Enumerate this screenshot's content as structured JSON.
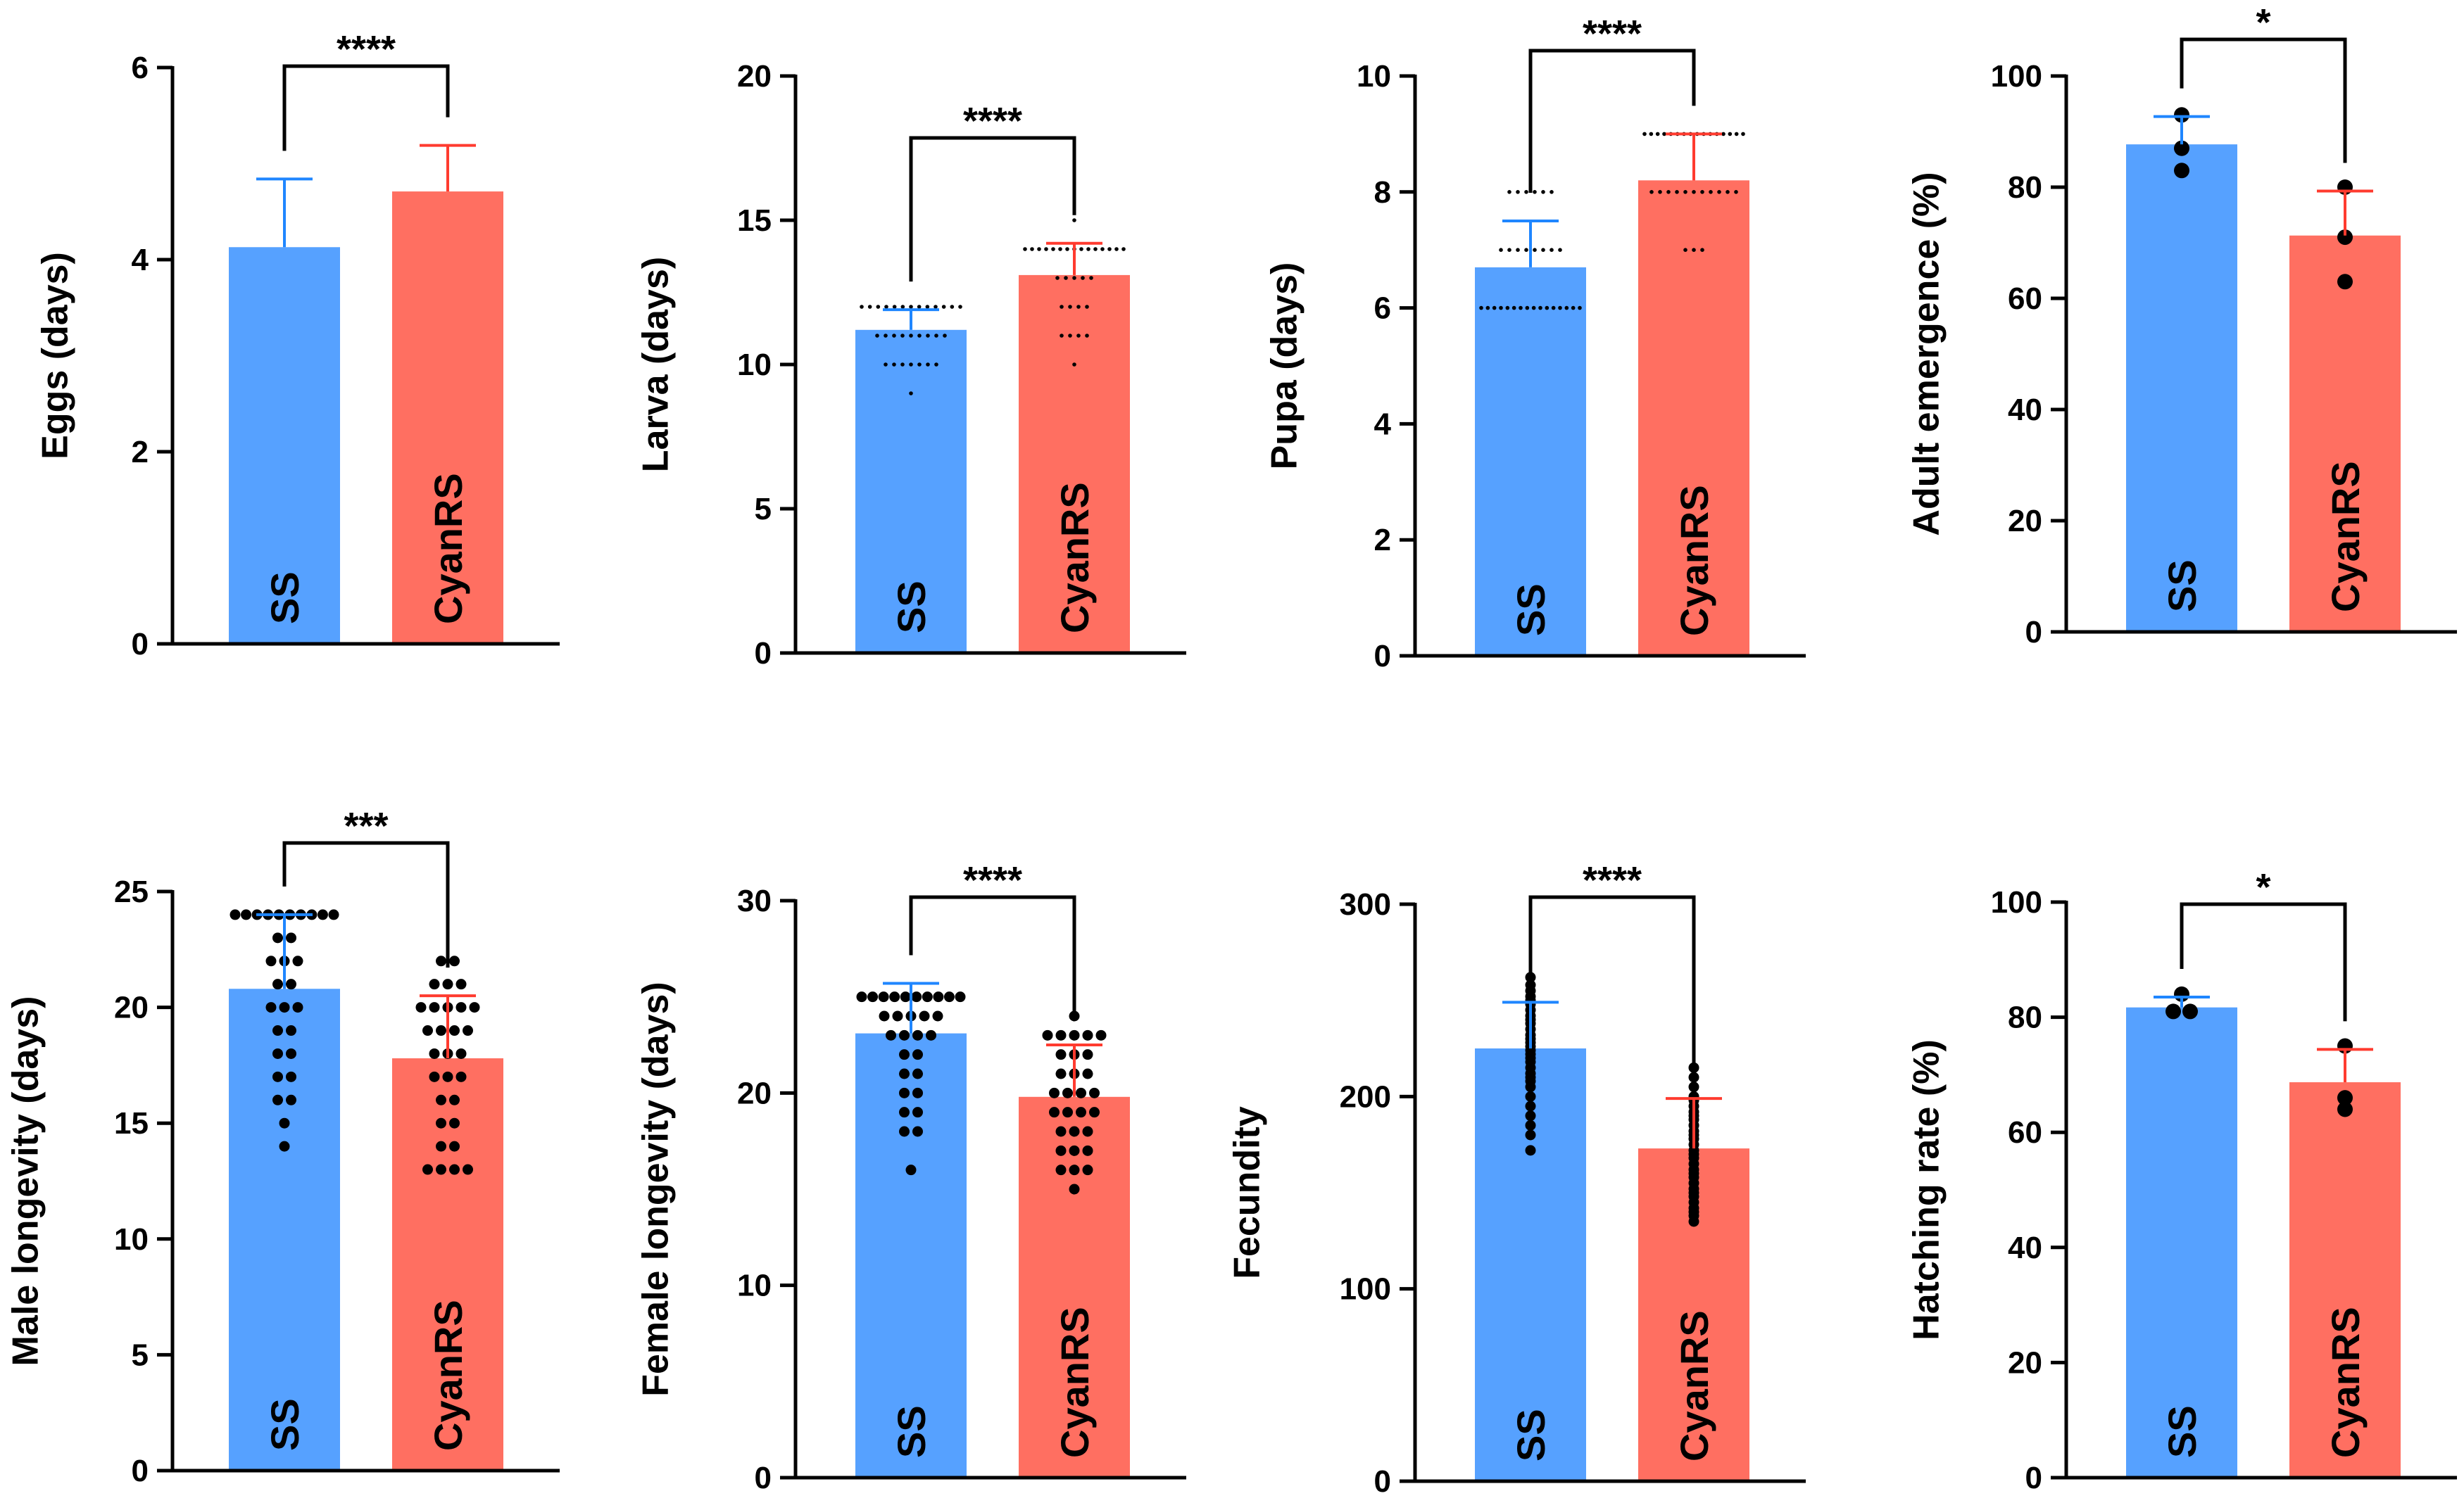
{
  "colors": {
    "SS": "#56A1FF",
    "CyanRS": "#FF6F61",
    "SS_error": "#1F86FF",
    "CyanRS_error": "#FF3B2F",
    "axis": "#000000"
  },
  "chart_data": [
    {
      "type": "bar",
      "panel": "top-left",
      "ylabel": "Eggs (days)",
      "ylim": [
        0,
        6
      ],
      "yticks": [
        0,
        2,
        4,
        6
      ],
      "categories": [
        "SS",
        "CyanRS"
      ],
      "values": [
        4.13,
        4.71
      ],
      "sd": [
        0.71,
        0.48
      ],
      "points": [
        [],
        []
      ],
      "points_style": "none",
      "significance": "****"
    },
    {
      "type": "bar",
      "panel": "top-2",
      "ylabel": "Larva (days)",
      "ylim": [
        0,
        20
      ],
      "yticks": [
        0,
        5,
        10,
        15,
        20
      ],
      "categories": [
        "SS",
        "CyanRS"
      ],
      "values": [
        11.2,
        13.1
      ],
      "sd": [
        0.7,
        1.1
      ],
      "points": [
        [
          12,
          12,
          12,
          12,
          12,
          12,
          12,
          12,
          12,
          12,
          12,
          12,
          12,
          11,
          11,
          11,
          11,
          11,
          11,
          11,
          11,
          11,
          10,
          10,
          10,
          10,
          10,
          10,
          10,
          9
        ],
        [
          15,
          14,
          14,
          14,
          14,
          14,
          14,
          14,
          14,
          14,
          14,
          14,
          14,
          14,
          14,
          14,
          13,
          13,
          13,
          13,
          13,
          12,
          12,
          12,
          12,
          11,
          11,
          11,
          11,
          10
        ]
      ],
      "points_style": "small",
      "significance": "****"
    },
    {
      "type": "bar",
      "panel": "top-3",
      "ylabel": "Pupa (days)",
      "ylim": [
        0,
        10
      ],
      "yticks": [
        0,
        2,
        4,
        6,
        8,
        10
      ],
      "categories": [
        "SS",
        "CyanRS"
      ],
      "values": [
        6.7,
        8.2
      ],
      "sd": [
        0.8,
        0.8
      ],
      "points": [
        [
          8,
          8,
          8,
          8,
          8,
          8,
          7,
          7,
          7,
          7,
          7,
          7,
          7,
          7,
          6,
          6,
          6,
          6,
          6,
          6,
          6,
          6,
          6,
          6,
          6,
          6,
          6,
          6,
          6,
          6
        ],
        [
          9,
          9,
          9,
          9,
          9,
          9,
          9,
          9,
          9,
          9,
          9,
          9,
          9,
          9,
          9,
          9,
          8,
          8,
          8,
          8,
          8,
          8,
          8,
          8,
          8,
          8,
          8,
          7,
          7,
          7
        ]
      ],
      "points_style": "small",
      "significance": "****"
    },
    {
      "type": "bar",
      "panel": "top-right",
      "ylabel": "Adult emergence (%)",
      "ylim": [
        0,
        100
      ],
      "yticks": [
        0,
        20,
        40,
        60,
        80,
        100
      ],
      "categories": [
        "SS",
        "CyanRS"
      ],
      "values": [
        87.7,
        71.3
      ],
      "sd": [
        5.0,
        8.0
      ],
      "points": [
        [
          93,
          87,
          83
        ],
        [
          80,
          71,
          63
        ]
      ],
      "points_style": "large",
      "significance": "*"
    },
    {
      "type": "bar",
      "panel": "bottom-left",
      "ylabel": "Male longevity (days)",
      "ylim": [
        0,
        25
      ],
      "yticks": [
        0,
        5,
        10,
        15,
        20,
        25
      ],
      "categories": [
        "SS",
        "CyanRS"
      ],
      "values": [
        20.8,
        17.8
      ],
      "sd": [
        3.2,
        2.7
      ],
      "points": [
        [
          24,
          24,
          24,
          24,
          24,
          24,
          24,
          24,
          24,
          24,
          23,
          23,
          22,
          22,
          22,
          21,
          21,
          20,
          20,
          20,
          19,
          19,
          18,
          18,
          17,
          17,
          16,
          16,
          15,
          14
        ],
        [
          22,
          22,
          21,
          21,
          21,
          20,
          20,
          20,
          20,
          20,
          19,
          19,
          19,
          19,
          18,
          18,
          18,
          17,
          17,
          17,
          16,
          16,
          15,
          15,
          14,
          14,
          13,
          13,
          13,
          13
        ]
      ],
      "points_style": "medium",
      "significance": "***"
    },
    {
      "type": "bar",
      "panel": "bottom-2",
      "ylabel": "Female longevity (days)",
      "ylim": [
        0,
        30
      ],
      "yticks": [
        0,
        10,
        20,
        30
      ],
      "categories": [
        "SS",
        "CyanRS"
      ],
      "values": [
        23.1,
        19.8
      ],
      "sd": [
        2.6,
        2.7
      ],
      "points": [
        [
          25,
          25,
          25,
          25,
          25,
          25,
          25,
          25,
          25,
          25,
          24,
          24,
          24,
          24,
          24,
          23,
          23,
          23,
          23,
          22,
          22,
          21,
          21,
          20,
          20,
          19,
          19,
          18,
          18,
          16
        ],
        [
          24,
          23,
          23,
          23,
          23,
          23,
          22,
          22,
          22,
          21,
          21,
          21,
          20,
          20,
          20,
          20,
          19,
          19,
          19,
          19,
          18,
          18,
          18,
          17,
          17,
          17,
          16,
          16,
          16,
          15
        ]
      ],
      "points_style": "medium",
      "significance": "****"
    },
    {
      "type": "bar",
      "panel": "bottom-3",
      "ylabel": "Fecundity",
      "ylim": [
        0,
        300
      ],
      "yticks": [
        0,
        100,
        200,
        300
      ],
      "categories": [
        "SS",
        "CyanRS"
      ],
      "values": [
        225,
        173
      ],
      "sd": [
        24,
        26
      ],
      "points": [
        [
          262,
          258,
          255,
          252,
          250,
          248,
          245,
          242,
          240,
          238,
          235,
          232,
          230,
          228,
          226,
          224,
          222,
          220,
          218,
          215,
          212,
          210,
          208,
          205,
          200,
          195,
          190,
          185,
          180,
          172
        ],
        [
          215,
          210,
          205,
          200,
          198,
          195,
          192,
          190,
          188,
          185,
          182,
          180,
          178,
          175,
          172,
          170,
          168,
          165,
          162,
          160,
          158,
          155,
          152,
          150,
          148,
          145,
          142,
          140,
          138,
          135
        ]
      ],
      "points_style": "medium",
      "significance": "****"
    },
    {
      "type": "bar",
      "panel": "bottom-right",
      "ylabel": "Hatching rate (%)",
      "ylim": [
        0,
        100
      ],
      "yticks": [
        0,
        20,
        40,
        60,
        80,
        100
      ],
      "categories": [
        "SS",
        "CyanRS"
      ],
      "values": [
        81.7,
        68.7
      ],
      "sd": [
        1.8,
        5.7
      ],
      "points": [
        [
          84,
          81,
          81
        ],
        [
          75,
          66,
          64
        ]
      ],
      "points_style": "large",
      "significance": "*"
    }
  ]
}
